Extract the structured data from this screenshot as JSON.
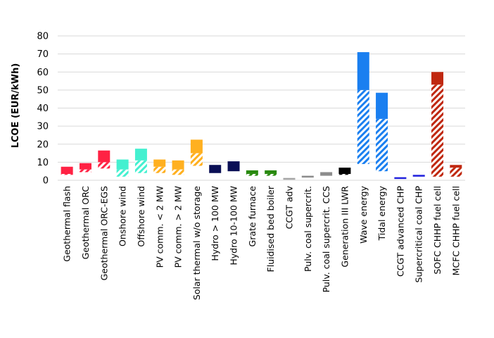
{
  "chart_data": {
    "type": "bar",
    "subtype": "floating-range",
    "title": "",
    "xlabel": "",
    "ylabel": "LCOE (EUR/kWh)",
    "ylim": [
      0,
      80
    ],
    "yticks": [
      0,
      10,
      20,
      30,
      40,
      50,
      60,
      70,
      80
    ],
    "grid": true,
    "legend": "none",
    "categories": [
      "Geothermal flash",
      "Geothermal ORC",
      "Geothermal ORC-EGS",
      "Onshore wind",
      "Offshore wind",
      "PV comm. < 2 MW",
      "PV comm. > 2 MW",
      "Solar thermal w/o storage",
      "Hydro > 100 MW",
      "Hydro 10-100 MW",
      "Grate furnace",
      "Fluidised bed boiler",
      "CCGT adv",
      "Pulv. coal supercrit.",
      "Pulv. coal supercrit. CCS",
      "Generation III LWR",
      "Wave energy",
      "Tidal energy",
      "CCGT advanced CHP",
      "Supercritical coal CHP",
      "SOFC CHHP fuel cell",
      "MCFC CHHP fuel cell"
    ],
    "series": [
      {
        "values_min": [
          3,
          4.5,
          6.5,
          2,
          4,
          4,
          3,
          8,
          4,
          5,
          2.5,
          2.5,
          0.8,
          1.5,
          2.5,
          3,
          9,
          5,
          0.8,
          2,
          2,
          2
        ],
        "values_mid": [
          3.5,
          6,
          10,
          6,
          11,
          7.5,
          6,
          15,
          4,
          5,
          3.5,
          3.5,
          0.8,
          1.5,
          2.5,
          3.5,
          50,
          34,
          1.2,
          2,
          53,
          7
        ],
        "values_max": [
          7.5,
          9.5,
          16.5,
          11.5,
          17.5,
          11.5,
          11,
          22.5,
          8.5,
          10.5,
          5.5,
          5.5,
          1,
          2.5,
          4.5,
          7,
          71,
          48.5,
          1.8,
          3,
          60,
          8.5
        ],
        "colors": [
          "#ff2244",
          "#ff2244",
          "#ff2244",
          "#44f0d0",
          "#44f0d0",
          "#ffb020",
          "#ffb020",
          "#ffb020",
          "#0a0f55",
          "#0a0f55",
          "#2a8a10",
          "#2a8a10",
          "#a6a6a6",
          "#8c8c8c",
          "#8c8c8c",
          "#000000",
          "#1a7ff0",
          "#1a7ff0",
          "#2222dd",
          "#2222dd",
          "#c02810",
          "#c02810"
        ]
      }
    ]
  }
}
